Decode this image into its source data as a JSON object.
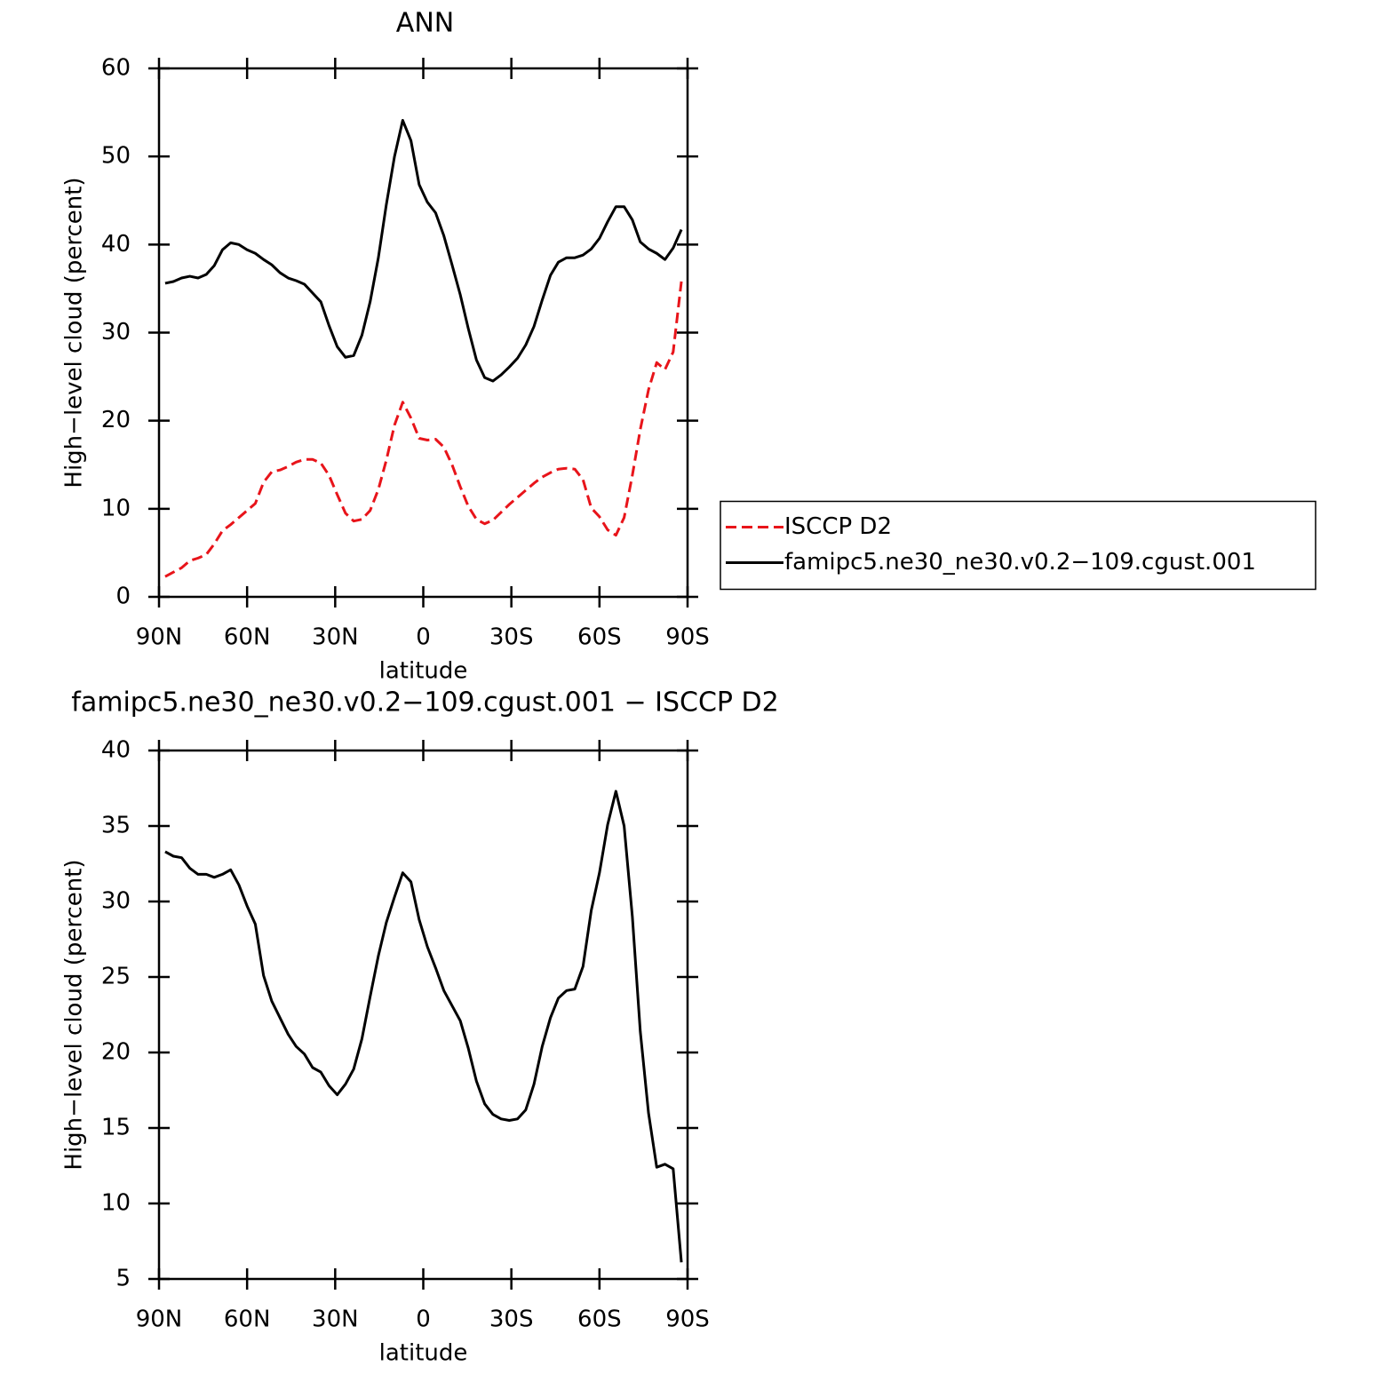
{
  "chart_data": [
    {
      "type": "line",
      "title": "ANN",
      "xlabel": "latitude",
      "ylabel": "High−level cloud (percent)",
      "x": [
        87.9,
        85.1,
        82.3,
        79.5,
        76.7,
        73.9,
        71.2,
        68.4,
        65.6,
        62.8,
        60.0,
        57.2,
        54.4,
        51.6,
        48.8,
        46.0,
        43.3,
        40.5,
        37.7,
        34.9,
        32.1,
        29.3,
        26.5,
        23.7,
        20.9,
        18.1,
        15.3,
        12.6,
        9.8,
        7.0,
        4.2,
        1.4,
        -1.4,
        -4.2,
        -7.0,
        -9.8,
        -12.6,
        -15.3,
        -18.1,
        -20.9,
        -23.7,
        -26.5,
        -29.3,
        -32.1,
        -34.9,
        -37.7,
        -40.5,
        -43.3,
        -46.0,
        -48.8,
        -51.6,
        -54.4,
        -57.2,
        -60.0,
        -62.8,
        -65.6,
        -68.4,
        -71.2,
        -73.9,
        -76.7,
        -79.5,
        -82.3,
        -85.1,
        -87.9
      ],
      "series": [
        {
          "name": "ISCCP D2",
          "color": "#e8141a",
          "linestyle": "dashed",
          "values": [
            2.3,
            2.8,
            3.3,
            4.1,
            4.4,
            4.8,
            6.0,
            7.5,
            8.2,
            9.0,
            9.8,
            10.6,
            13.0,
            14.2,
            14.4,
            14.8,
            15.3,
            15.6,
            15.6,
            15.2,
            13.8,
            11.6,
            9.5,
            8.6,
            8.8,
            9.8,
            12.2,
            15.5,
            19.5,
            22.1,
            20.3,
            18.0,
            17.8,
            17.9,
            17.0,
            15.0,
            12.5,
            10.3,
            8.8,
            8.3,
            8.7,
            9.6,
            10.5,
            11.3,
            12.1,
            12.9,
            13.6,
            14.1,
            14.5,
            14.6,
            14.5,
            13.3,
            10.1,
            9.1,
            7.6,
            7.0,
            9.0,
            13.8,
            19.0,
            23.5,
            26.6,
            25.8,
            27.8,
            35.8
          ]
        },
        {
          "name": "famipc5.ne30_ne30.v0.2−109.cgust.001",
          "color": "#000000",
          "linestyle": "solid",
          "values": [
            35.6,
            35.8,
            36.2,
            36.4,
            36.2,
            36.6,
            37.6,
            39.4,
            40.2,
            40.0,
            39.4,
            39.0,
            38.3,
            37.7,
            36.8,
            36.2,
            35.9,
            35.5,
            34.5,
            33.5,
            30.8,
            28.4,
            27.2,
            27.4,
            29.7,
            33.5,
            38.5,
            44.5,
            50.0,
            54.1,
            51.8,
            46.8,
            44.8,
            43.6,
            41.0,
            37.7,
            34.3,
            30.5,
            26.9,
            24.9,
            24.5,
            25.2,
            26.1,
            27.1,
            28.6,
            30.7,
            33.7,
            36.5,
            38.0,
            38.5,
            38.5,
            38.8,
            39.5,
            40.7,
            42.6,
            44.3,
            44.3,
            42.8,
            40.3,
            39.5,
            39.0,
            38.3,
            39.6,
            41.7
          ]
        }
      ],
      "xlim": [
        90,
        -90
      ],
      "xticks": [
        {
          "value": 90,
          "label": "90N"
        },
        {
          "value": 60,
          "label": "60N"
        },
        {
          "value": 30,
          "label": "30N"
        },
        0,
        {
          "value": -30,
          "label": "30S"
        },
        {
          "value": -60,
          "label": "60S"
        },
        {
          "value": -90,
          "label": "90S"
        }
      ],
      "ylim": [
        0,
        60
      ],
      "yticks": [
        0,
        10,
        20,
        30,
        40,
        50,
        60
      ],
      "legend": "right",
      "grid": false
    },
    {
      "type": "line",
      "title": "famipc5.ne30_ne30.v0.2−109.cgust.001 − ISCCP D2",
      "xlabel": "latitude",
      "ylabel": "High−level cloud (percent)",
      "x": [
        87.9,
        85.1,
        82.3,
        79.5,
        76.7,
        73.9,
        71.2,
        68.4,
        65.6,
        62.8,
        60.0,
        57.2,
        54.4,
        51.6,
        48.8,
        46.0,
        43.3,
        40.5,
        37.7,
        34.9,
        32.1,
        29.3,
        26.5,
        23.7,
        20.9,
        18.1,
        15.3,
        12.6,
        9.8,
        7.0,
        4.2,
        1.4,
        -1.4,
        -4.2,
        -7.0,
        -9.8,
        -12.6,
        -15.3,
        -18.1,
        -20.9,
        -23.7,
        -26.5,
        -29.3,
        -32.1,
        -34.9,
        -37.7,
        -40.5,
        -43.3,
        -46.0,
        -48.8,
        -51.6,
        -54.4,
        -57.2,
        -60.0,
        -62.8,
        -65.6,
        -68.4,
        -71.2,
        -73.9,
        -76.7,
        -79.5,
        -82.3,
        -85.1,
        -87.9
      ],
      "series": [
        {
          "color": "#000000",
          "linestyle": "solid",
          "values": [
            33.3,
            33.0,
            32.9,
            32.2,
            31.8,
            31.8,
            31.6,
            31.8,
            32.1,
            31.1,
            29.7,
            28.5,
            25.1,
            23.4,
            22.3,
            21.2,
            20.4,
            19.9,
            19.0,
            18.7,
            17.8,
            17.2,
            17.9,
            18.9,
            20.9,
            23.7,
            26.4,
            28.6,
            30.3,
            31.9,
            31.3,
            28.8,
            27.0,
            25.6,
            24.1,
            23.1,
            22.1,
            20.3,
            18.1,
            16.6,
            15.9,
            15.6,
            15.5,
            15.6,
            16.2,
            17.9,
            20.4,
            22.3,
            23.6,
            24.1,
            24.2,
            25.7,
            29.4,
            31.9,
            35.1,
            37.3,
            35.0,
            29.0,
            21.4,
            16.0,
            12.4,
            12.6,
            12.3,
            6.1
          ]
        }
      ],
      "xlim": [
        90,
        -90
      ],
      "xticks": [
        {
          "value": 90,
          "label": "90N"
        },
        {
          "value": 60,
          "label": "60N"
        },
        {
          "value": 30,
          "label": "30N"
        },
        0,
        {
          "value": -30,
          "label": "30S"
        },
        {
          "value": -60,
          "label": "60S"
        },
        {
          "value": -90,
          "label": "90S"
        }
      ],
      "ylim": [
        5,
        40
      ],
      "yticks": [
        5,
        10,
        15,
        20,
        25,
        30,
        35,
        40
      ],
      "grid": false
    }
  ]
}
